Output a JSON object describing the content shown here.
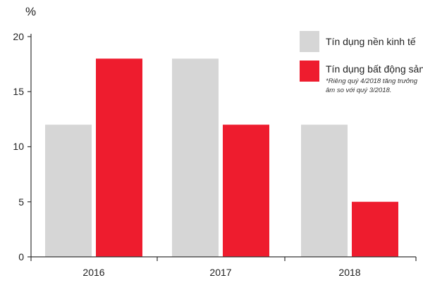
{
  "chart_data": {
    "type": "bar",
    "unit_label": "%",
    "categories": [
      "2016",
      "2017",
      "2018"
    ],
    "series": [
      {
        "name": "Tín dụng nền kinh tế",
        "color": "#d6d6d6",
        "values": [
          12,
          18,
          12
        ]
      },
      {
        "name": "Tín dụng bất động sản",
        "color": "#ee1c2e",
        "values": [
          18,
          12,
          5
        ]
      }
    ],
    "legend_note_lines": [
      "*Riêng quý 4/2018 tăng trưởng",
      "âm so với quý 3/2018."
    ],
    "ylim": [
      0,
      20
    ],
    "yticks": [
      0,
      5,
      10,
      15,
      20
    ],
    "axis_color": "#333333",
    "grid": false,
    "legend_position": "top-right"
  }
}
